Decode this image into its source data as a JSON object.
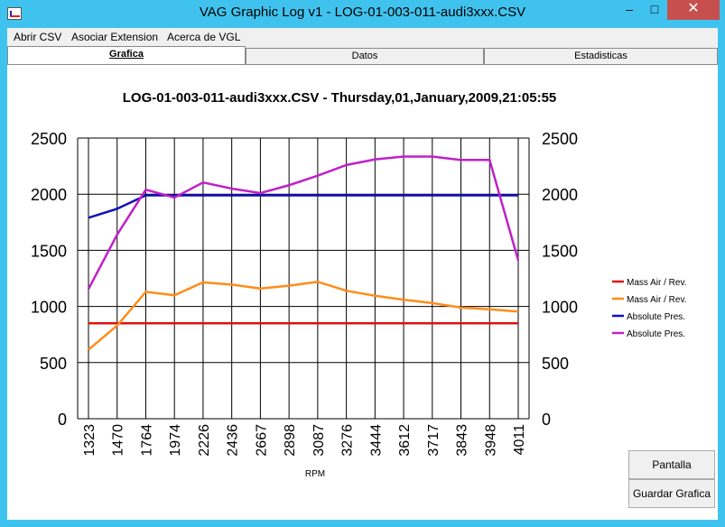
{
  "window": {
    "title": "VAG Graphic Log  v1 -  LOG-01-003-011-audi3xxx.CSV",
    "minimize_glyph": "–",
    "maximize_glyph": "□",
    "close_glyph": "✕"
  },
  "menu": {
    "items": [
      "Abrir CSV",
      "Asociar Extension",
      "Acerca de VGL"
    ]
  },
  "tabs": [
    {
      "label": "Grafica",
      "active": true
    },
    {
      "label": "Datos",
      "active": false
    },
    {
      "label": "Estadisticas",
      "active": false
    }
  ],
  "buttons": {
    "fullscreen": "Pantalla Completa",
    "save_chart": "Guardar Grafica"
  },
  "chart_data": {
    "type": "line",
    "title": "LOG-01-003-011-audi3xxx.CSV - Thursday,01,January,2009,21:05:55",
    "xlabel": "RPM",
    "ylabel": "",
    "ylim": [
      0,
      2500
    ],
    "yticks": [
      0,
      500,
      1000,
      1500,
      2000,
      2500
    ],
    "grid": true,
    "legend_position": "right",
    "categories": [
      "1323",
      "1470",
      "1764",
      "1974",
      "2226",
      "2436",
      "2667",
      "2898",
      "3087",
      "3276",
      "3444",
      "3612",
      "3717",
      "3843",
      "3948",
      "4011"
    ],
    "series": [
      {
        "name": "Mass Air / Rev.",
        "color": "#E01010",
        "values": [
          850,
          850,
          850,
          850,
          850,
          850,
          850,
          850,
          850,
          850,
          850,
          850,
          850,
          850,
          850,
          850
        ]
      },
      {
        "name": "Mass Air / Rev.",
        "color": "#FF8C1A",
        "values": [
          615,
          830,
          1130,
          1100,
          1215,
          1195,
          1160,
          1185,
          1220,
          1140,
          1095,
          1060,
          1030,
          990,
          975,
          955
        ]
      },
      {
        "name": "Absolute Pres.",
        "color": "#1010B8",
        "values": [
          1790,
          1870,
          1990,
          1990,
          1990,
          1990,
          1990,
          1990,
          1990,
          1990,
          1990,
          1990,
          1990,
          1990,
          1990,
          1990
        ]
      },
      {
        "name": "Absolute Pres.",
        "color": "#C020C8",
        "values": [
          1155,
          1640,
          2040,
          1970,
          2105,
          2050,
          2010,
          2080,
          2165,
          2260,
          2310,
          2335,
          2335,
          2305,
          2305,
          1410
        ]
      }
    ]
  }
}
